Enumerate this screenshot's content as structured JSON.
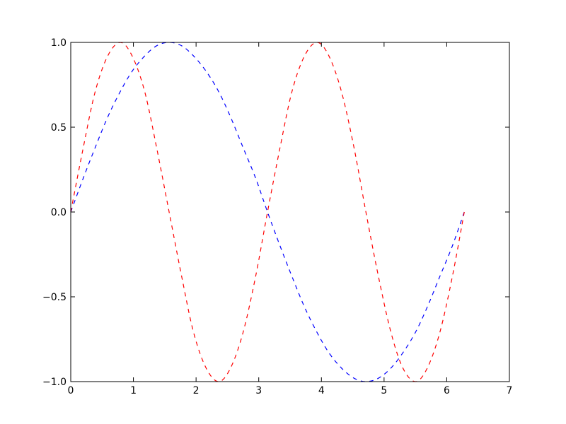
{
  "chart_data": {
    "type": "line",
    "x": [
      0,
      0.2,
      0.39,
      0.59,
      0.79,
      0.98,
      1.18,
      1.37,
      1.57,
      1.77,
      1.96,
      2.16,
      2.36,
      2.55,
      2.75,
      2.95,
      3.14,
      3.34,
      3.53,
      3.73,
      3.93,
      4.12,
      4.32,
      4.52,
      4.71,
      4.91,
      5.11,
      5.3,
      5.5,
      5.69,
      5.89,
      6.09,
      6.28
    ],
    "series": [
      {
        "color": "#0000ff",
        "values": [
          0,
          0.2,
          0.38,
          0.56,
          0.71,
          0.83,
          0.92,
          0.98,
          1.0,
          0.98,
          0.92,
          0.83,
          0.71,
          0.56,
          0.38,
          0.2,
          0.0,
          -0.2,
          -0.38,
          -0.56,
          -0.71,
          -0.83,
          -0.92,
          -0.98,
          -1.0,
          -0.98,
          -0.92,
          -0.83,
          -0.71,
          -0.56,
          -0.38,
          -0.2,
          0.0
        ]
      },
      {
        "color": "#ff0000",
        "values": [
          0,
          0.38,
          0.71,
          0.92,
          1.0,
          0.92,
          0.71,
          0.38,
          0.0,
          -0.38,
          -0.71,
          -0.92,
          -1.0,
          -0.92,
          -0.71,
          -0.38,
          0.0,
          0.38,
          0.71,
          0.92,
          1.0,
          0.92,
          0.71,
          0.38,
          0.0,
          -0.38,
          -0.71,
          -0.92,
          -1.0,
          -0.92,
          -0.71,
          -0.38,
          0.0
        ]
      }
    ],
    "xlim": [
      0,
      7
    ],
    "xticks": [
      0,
      1,
      2,
      3,
      4,
      5,
      6,
      7
    ],
    "ylim": [
      -1,
      1
    ],
    "yticks": [
      {
        "value": -1,
        "label": "−1.0"
      },
      {
        "value": -0.5,
        "label": "−0.5"
      },
      {
        "value": 0,
        "label": "0.0"
      },
      {
        "value": 0.5,
        "label": "0.5"
      },
      {
        "value": 1,
        "label": "1.0"
      }
    ],
    "line_style": "dashed",
    "grid": false
  }
}
